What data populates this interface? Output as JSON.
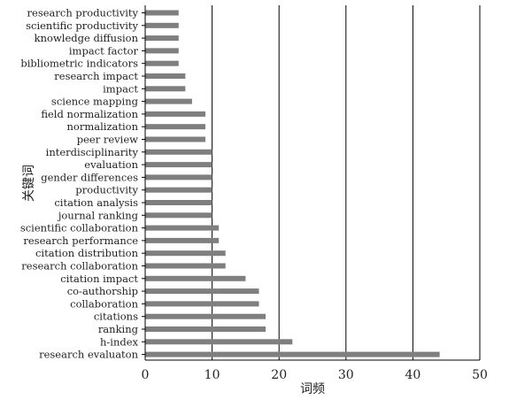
{
  "chart_data": {
    "type": "bar",
    "orientation": "horizontal",
    "title": "",
    "xlabel": "词频",
    "ylabel": "关键词",
    "xlim": [
      0,
      50
    ],
    "xticks": [
      0,
      10,
      20,
      30,
      40,
      50
    ],
    "grid": "vertical lines at major ticks",
    "categories": [
      "research productivity",
      "scientific productivity",
      "knowledge diffusion",
      "impact factor",
      "bibliometric indicators",
      "research impact",
      "impact",
      "science mapping",
      "field normalization",
      "normalization",
      "peer review",
      "interdisciplinarity",
      "evaluation",
      "gender differences",
      "productivity",
      "citation analysis",
      "journal ranking",
      "scientific collaboration",
      "research performance",
      "citation distribution",
      "research collaboration",
      "citation impact",
      "co-authorship",
      "collaboration",
      "citations",
      "ranking",
      "h-index",
      "research evaluaton"
    ],
    "values": [
      5,
      5,
      5,
      5,
      5,
      6,
      6,
      7,
      9,
      9,
      9,
      10,
      10,
      10,
      10,
      10,
      10,
      11,
      11,
      12,
      12,
      15,
      17,
      17,
      18,
      18,
      22,
      44
    ],
    "colors": {
      "bar": "#7f7f7f",
      "axis": "#000000",
      "grid": "#000000"
    }
  }
}
